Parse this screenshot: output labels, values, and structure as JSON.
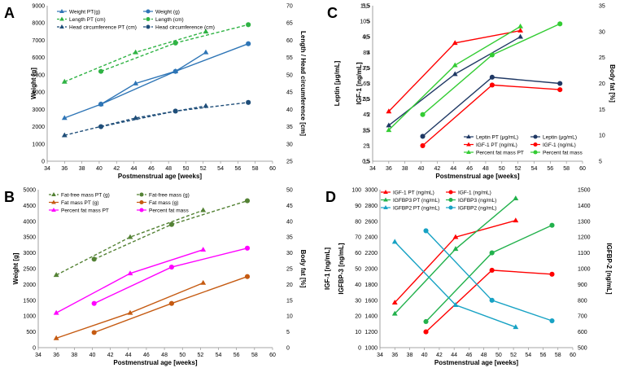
{
  "chart_data": [
    {
      "panel": "A",
      "type": "line",
      "xlabel": "Postmenstrual age [weeks]",
      "ylabel": "Weight [g]",
      "y2label": "Length / Head circumference [cm]",
      "xlim": [
        34,
        60
      ],
      "xticks": [
        34,
        36,
        38,
        40,
        42,
        44,
        46,
        48,
        50,
        52,
        54,
        56,
        58,
        60
      ],
      "ylim": [
        0,
        9000
      ],
      "yticks": [
        0,
        1000,
        2000,
        3000,
        4000,
        5000,
        6000,
        7000,
        8000,
        9000
      ],
      "y2lim": [
        25,
        70
      ],
      "y2ticks": [
        25,
        30,
        35,
        40,
        45,
        50,
        55,
        60,
        65,
        70
      ],
      "series": [
        {
          "name": "Weight PT(g)",
          "axis": "left",
          "color": "#2e75b6",
          "marker": "triangle",
          "line": "solid",
          "x": [
            36,
            40.2,
            44.2,
            48.8,
            52.3
          ],
          "y": [
            2500,
            3300,
            4500,
            5200,
            6300
          ]
        },
        {
          "name": "Weight (g)",
          "axis": "left",
          "color": "#2e75b6",
          "marker": "circle",
          "line": "solid",
          "x": [
            40.2,
            48.8,
            57.2
          ],
          "y": [
            3300,
            5200,
            6800
          ]
        },
        {
          "name": "Length PT (cm)",
          "axis": "right",
          "color": "#2fb344",
          "marker": "triangle",
          "line": "dashed",
          "x": [
            36,
            44.2,
            52.3
          ],
          "y": [
            48,
            56.5,
            62.5
          ]
        },
        {
          "name": "Length (cm)",
          "axis": "right",
          "color": "#2fb344",
          "marker": "circle",
          "line": "dashed",
          "x": [
            40.2,
            48.8,
            57.2
          ],
          "y": [
            51,
            59.2,
            64.5
          ]
        },
        {
          "name": "Head circumference PT (cm)",
          "axis": "right",
          "color": "#1f4e79",
          "marker": "triangle",
          "line": "dashed",
          "x": [
            36,
            44.2,
            52.3
          ],
          "y": [
            32.5,
            37.5,
            41
          ]
        },
        {
          "name": "Head circumference (cm)",
          "axis": "right",
          "color": "#1f4e79",
          "marker": "circle",
          "line": "dashed",
          "x": [
            40.2,
            48.8,
            57.2
          ],
          "y": [
            35,
            39.5,
            42
          ]
        }
      ]
    },
    {
      "panel": "B",
      "type": "line",
      "xlabel": "Postmenstrual age [weeks]",
      "ylabel": "Weight [g]",
      "y2label": "Body fat [%]",
      "xlim": [
        34,
        60
      ],
      "xticks": [
        34,
        36,
        38,
        40,
        42,
        44,
        46,
        48,
        50,
        52,
        54,
        56,
        58,
        60
      ],
      "ylim": [
        0,
        5000
      ],
      "yticks": [
        0,
        500,
        1000,
        1500,
        2000,
        2500,
        3000,
        3500,
        4000,
        4500,
        5000
      ],
      "y2lim": [
        0,
        50
      ],
      "y2ticks": [
        0,
        5,
        10,
        15,
        20,
        25,
        30,
        35,
        40,
        45,
        50
      ],
      "series": [
        {
          "name": "Fat-free mass PT (g)",
          "axis": "left",
          "color": "#548235",
          "marker": "triangle",
          "line": "dashed",
          "x": [
            36,
            44.2,
            52.3
          ],
          "y": [
            2300,
            3500,
            4350
          ]
        },
        {
          "name": "Fat-free mass (g)",
          "axis": "left",
          "color": "#548235",
          "marker": "circle",
          "line": "dashed",
          "x": [
            40.2,
            48.8,
            57.2
          ],
          "y": [
            2800,
            3900,
            4650
          ]
        },
        {
          "name": "Fat mass PT (g)",
          "axis": "left",
          "color": "#c55a11",
          "marker": "triangle",
          "line": "solid",
          "x": [
            36,
            44.2,
            52.3
          ],
          "y": [
            300,
            1100,
            2050
          ]
        },
        {
          "name": "Fat mass (g)",
          "axis": "left",
          "color": "#c55a11",
          "marker": "circle",
          "line": "solid",
          "x": [
            40.2,
            48.8,
            57.2
          ],
          "y": [
            480,
            1400,
            2250
          ]
        },
        {
          "name": "Percent fat mass PT",
          "axis": "right",
          "color": "#ff00ff",
          "marker": "triangle",
          "line": "solid",
          "x": [
            36,
            44.2,
            52.3
          ],
          "y": [
            11,
            23.5,
            31
          ]
        },
        {
          "name": "Percent fat mass",
          "axis": "right",
          "color": "#ff00ff",
          "marker": "circle",
          "line": "solid",
          "x": [
            40.2,
            48.8,
            57.2
          ],
          "y": [
            14,
            25.5,
            31.5
          ]
        }
      ]
    },
    {
      "panel": "C",
      "type": "line",
      "xlabel": "Postmenstrual age [weeks]",
      "ylabel": "Leptin [μg/mL]",
      "ylabel2": "IGF-1 [ng/mL]",
      "y2label": "Body fat [%]",
      "xlim": [
        34,
        60
      ],
      "xticks": [
        34,
        36,
        38,
        40,
        42,
        44,
        46,
        48,
        50,
        52,
        54,
        56,
        58,
        60
      ],
      "ylim": [
        0.5,
        5.5
      ],
      "yticks": [
        "0,5",
        "1",
        "1,5",
        "2",
        "2,5",
        "3",
        "3,5",
        "4",
        "4,5",
        "5",
        "5,5"
      ],
      "ylim_b": [
        15,
        115
      ],
      "yticks_b": [
        15,
        25,
        35,
        45,
        55,
        65,
        75,
        85,
        95,
        105,
        115
      ],
      "y2lim": [
        5,
        35
      ],
      "y2ticks": [
        5,
        10,
        15,
        20,
        25,
        30,
        35
      ],
      "series": [
        {
          "name": "Leptin PT (μg/mL)",
          "axis": "left",
          "color": "#1f3864",
          "marker": "triangle",
          "line": "solid",
          "x": [
            36,
            44.2,
            52.3
          ],
          "y": [
            1.65,
            3.3,
            4.5
          ]
        },
        {
          "name": "Leptin (μg/mL)",
          "axis": "left",
          "color": "#1f3864",
          "marker": "circle",
          "line": "solid",
          "x": [
            40.2,
            48.8,
            57.2
          ],
          "y": [
            1.3,
            3.2,
            3.0
          ]
        },
        {
          "name": "IGF-1 PT (ng/mL)",
          "axis": "left",
          "color": "#ff0000",
          "marker": "triangle",
          "line": "solid",
          "x": [
            36,
            44.2,
            52.3
          ],
          "y": [
            2.1,
            4.3,
            4.7
          ]
        },
        {
          "name": "IGF-1 (ng/mL)",
          "axis": "left",
          "color": "#ff0000",
          "marker": "circle",
          "line": "solid",
          "x": [
            40.2,
            48.8,
            57.2
          ],
          "y": [
            1.0,
            2.95,
            2.8
          ]
        },
        {
          "name": "Percent fat mass PT",
          "axis": "right",
          "color": "#33cc33",
          "marker": "triangle",
          "line": "solid",
          "x": [
            36,
            44.2,
            52.3
          ],
          "y": [
            11,
            23.5,
            31
          ]
        },
        {
          "name": "Percent fat mass",
          "axis": "right",
          "color": "#33cc33",
          "marker": "circle",
          "line": "solid",
          "x": [
            40.2,
            48.8,
            57.2
          ],
          "y": [
            14,
            25.5,
            31.5
          ]
        }
      ]
    },
    {
      "panel": "D",
      "type": "line",
      "xlabel": "Postmenstrual age [weeks]",
      "ylabel": "IGF-1 [ng/mL]",
      "ylabel2": "IGFBP-3 [ng/mL]",
      "y2label": "IGFBP-2 [ng/mL]",
      "xlim": [
        34,
        60
      ],
      "xticks": [
        34,
        36,
        38,
        40,
        42,
        44,
        46,
        48,
        50,
        52,
        54,
        56,
        58,
        60
      ],
      "ylim": [
        1000,
        3000
      ],
      "yticks": [
        1000,
        1200,
        1400,
        1600,
        1800,
        2000,
        2200,
        2400,
        2600,
        2800,
        3000
      ],
      "ylim_b": [
        0,
        100
      ],
      "yticks_b": [
        0,
        10,
        20,
        30,
        40,
        50,
        60,
        70,
        80,
        90,
        100
      ],
      "y2lim": [
        500,
        1500
      ],
      "y2ticks": [
        500,
        600,
        700,
        800,
        900,
        1000,
        1100,
        1200,
        1300,
        1400,
        1500
      ],
      "series": [
        {
          "name": "IGF-1 PT (ng/mL)",
          "axis": "left",
          "color": "#ff0000",
          "marker": "triangle",
          "line": "solid",
          "x": [
            36,
            44.2,
            52.3
          ],
          "y": [
            1570,
            2400,
            2610
          ]
        },
        {
          "name": "IGF-1 (ng/mL)",
          "axis": "left",
          "color": "#ff0000",
          "marker": "circle",
          "line": "solid",
          "x": [
            40.2,
            49.1,
            57.2
          ],
          "y": [
            1200,
            1980,
            1930
          ]
        },
        {
          "name": "IGFBP3 PT (ng/mL)",
          "axis": "left",
          "color": "#22b14c",
          "marker": "triangle",
          "line": "solid",
          "x": [
            36,
            44.2,
            52.3
          ],
          "y": [
            1430,
            2250,
            2890
          ]
        },
        {
          "name": "IGFBP3 (ng/mL)",
          "axis": "left",
          "color": "#22b14c",
          "marker": "circle",
          "line": "solid",
          "x": [
            40.2,
            49.1,
            57.2
          ],
          "y": [
            1330,
            2200,
            2550
          ]
        },
        {
          "name": "IGFBP2 PT (ng/mL)",
          "axis": "right",
          "color": "#17a2c4",
          "marker": "triangle",
          "line": "solid",
          "x": [
            36,
            44.2,
            52.3
          ],
          "y": [
            1170,
            770,
            630
          ]
        },
        {
          "name": "IGFBP2 (ng/mL)",
          "axis": "right",
          "color": "#17a2c4",
          "marker": "circle",
          "line": "solid",
          "x": [
            40.2,
            49.1,
            57.2
          ],
          "y": [
            1240,
            800,
            670
          ]
        }
      ]
    }
  ]
}
